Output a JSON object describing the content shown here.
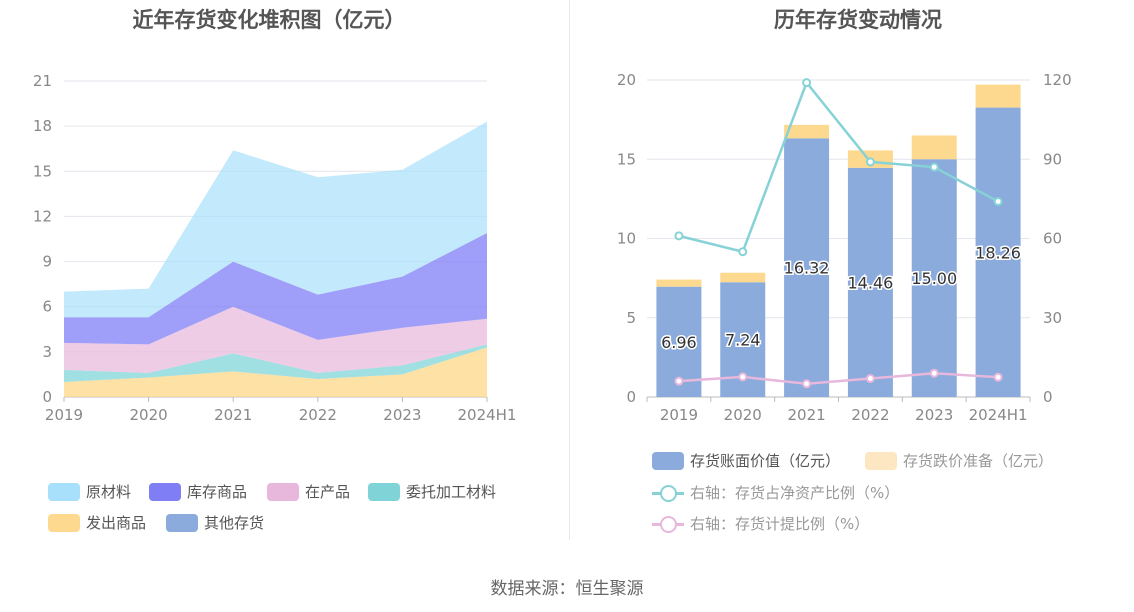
{
  "left_title": "近年存货变化堆积图（亿元）",
  "right_title": "历年存货变动情况",
  "source": "数据来源：恒生聚源",
  "colors": {
    "raw": "#a8e0fb",
    "stock": "#7f7ef5",
    "wip": "#e8b7dc",
    "consign": "#80d4d8",
    "shipped": "#fdd98f",
    "other": "#8aabdc",
    "book": "#8aabdc",
    "prov": "#fdd98f",
    "ratio_line": "#86d2d6",
    "prov_line": "#e8b7dc"
  },
  "left_legend": [
    "原材料",
    "库存商品",
    "在产品",
    "委托加工材料",
    "发出商品",
    "其他存货"
  ],
  "right_legend": [
    "存货账面价值（亿元）",
    "存货跌价准备（亿元）",
    "右轴：存货占净资产比例（%）",
    "右轴：存货计提比例（%）"
  ],
  "chart_data": [
    {
      "type": "area",
      "stacked": true,
      "title": "近年存货变化堆积图（亿元）",
      "categories": [
        "2019",
        "2020",
        "2021",
        "2022",
        "2023",
        "2024H1"
      ],
      "ylim": [
        0,
        21
      ],
      "yticks": [
        0,
        3,
        6,
        9,
        12,
        15,
        18,
        21
      ],
      "grid": true,
      "legend_position": "bottom",
      "series": [
        {
          "name": "发出商品",
          "values": [
            1.0,
            1.3,
            1.7,
            1.2,
            1.5,
            3.3
          ]
        },
        {
          "name": "委托加工材料",
          "values": [
            0.8,
            0.3,
            1.2,
            0.4,
            0.6,
            0.2
          ]
        },
        {
          "name": "在产品",
          "values": [
            1.8,
            1.9,
            3.1,
            2.2,
            2.5,
            1.7
          ]
        },
        {
          "name": "库存商品",
          "values": [
            1.7,
            1.8,
            3.0,
            3.0,
            3.4,
            5.7
          ]
        },
        {
          "name": "原材料",
          "values": [
            1.7,
            1.9,
            7.4,
            7.8,
            7.1,
            7.4
          ]
        },
        {
          "name": "其他存货",
          "values": [
            0,
            0,
            0,
            0,
            0,
            0
          ]
        }
      ]
    },
    {
      "type": "bar",
      "stacked": true,
      "title": "历年存货变动情况",
      "categories": [
        "2019",
        "2020",
        "2021",
        "2022",
        "2023",
        "2024H1"
      ],
      "ylim": [
        0,
        20
      ],
      "yticks": [
        0,
        5,
        10,
        15,
        20
      ],
      "y2lim": [
        0,
        120
      ],
      "y2ticks": [
        0,
        30,
        60,
        90,
        120
      ],
      "grid": true,
      "legend_position": "bottom",
      "series": [
        {
          "name": "存货账面价值（亿元）",
          "values": [
            6.96,
            7.24,
            16.32,
            14.46,
            15.0,
            18.26
          ],
          "labels": [
            "6.96",
            "7.24",
            "16.32",
            "14.46",
            "15.00",
            "18.26"
          ]
        },
        {
          "name": "存货跌价准备（亿元）",
          "values": [
            0.45,
            0.6,
            0.85,
            1.1,
            1.5,
            1.45
          ]
        }
      ],
      "lines": [
        {
          "name": "右轴：存货占净资产比例（%）",
          "axis": "right",
          "values": [
            61,
            55,
            119,
            89,
            87,
            74
          ]
        },
        {
          "name": "右轴：存货计提比例（%）",
          "axis": "right",
          "values": [
            6,
            7.6,
            5,
            7,
            9,
            7.5
          ]
        }
      ]
    }
  ]
}
